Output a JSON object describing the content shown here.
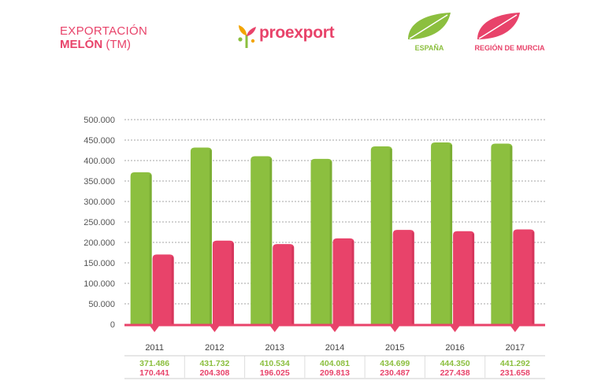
{
  "header": {
    "title_line1": "EXPORTACIÓN",
    "title_line2_bold": "MELÓN",
    "title_line2_rest": " (TM)",
    "brand": "proexport"
  },
  "legend": [
    {
      "label": "ESPAÑA",
      "color": "#8cbf3f"
    },
    {
      "label": "REGIÓN DE MURCIA",
      "color": "#e8436a"
    }
  ],
  "colors": {
    "spain": "#8cbf3f",
    "murcia": "#e8436a",
    "grid": "#888888",
    "axis_text": "#555555"
  },
  "chart_data": {
    "type": "bar",
    "title": "EXPORTACIÓN MELÓN (TM)",
    "categories": [
      "2011",
      "2012",
      "2013",
      "2014",
      "2015",
      "2016",
      "2017"
    ],
    "series": [
      {
        "name": "ESPAÑA",
        "values": [
          371486,
          431732,
          410534,
          404081,
          434699,
          444350,
          441292
        ],
        "labels": [
          "371.486",
          "431.732",
          "410.534",
          "404.081",
          "434.699",
          "444.350",
          "441.292"
        ]
      },
      {
        "name": "REGIÓN DE MURCIA",
        "values": [
          170441,
          204308,
          196025,
          209813,
          230487,
          227438,
          231658
        ],
        "labels": [
          "170.441",
          "204.308",
          "196.025",
          "209.813",
          "230.487",
          "227.438",
          "231.658"
        ]
      }
    ],
    "yticks": [
      "0",
      "50.000",
      "100.000",
      "150.000",
      "200.000",
      "250.000",
      "300.000",
      "350.000",
      "400.000",
      "450.000",
      "500.000"
    ],
    "ylim": [
      0,
      500000
    ],
    "xlabel": "",
    "ylabel": "",
    "grid": true,
    "legend_position": "top-right"
  }
}
